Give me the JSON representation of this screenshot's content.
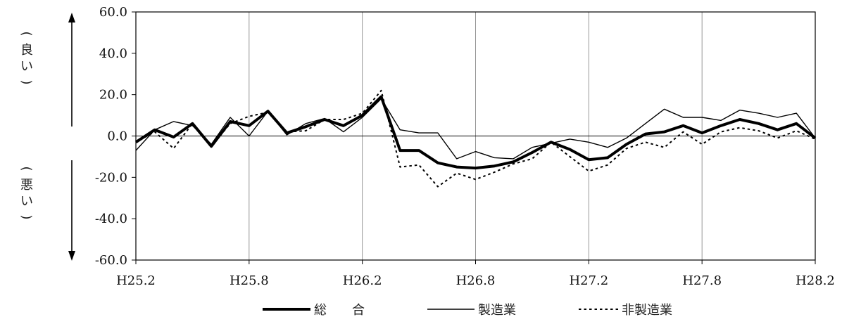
{
  "chart_data": {
    "type": "line",
    "title": "",
    "xlabel": "",
    "ylabel": "",
    "side_labels": {
      "upper": "（良い）",
      "lower": "（悪い）"
    },
    "ylim": [
      -60,
      60
    ],
    "yticks": [
      "60.0",
      "40.0",
      "20.0",
      "0.0",
      "-20.0",
      "-40.0",
      "-60.0"
    ],
    "ytick_values": [
      60,
      40,
      20,
      0,
      -20,
      -40,
      -60
    ],
    "x": [
      "H25.2",
      "H25.3",
      "H25.4",
      "H25.5",
      "H25.6",
      "H25.7",
      "H25.8",
      "H25.9",
      "H25.10",
      "H25.11",
      "H25.12",
      "H26.1",
      "H26.2",
      "H26.3",
      "H26.4",
      "H26.5",
      "H26.6",
      "H26.7",
      "H26.8",
      "H26.9",
      "H26.10",
      "H26.11",
      "H26.12",
      "H27.1",
      "H27.2",
      "H27.3",
      "H27.4",
      "H27.5",
      "H27.6",
      "H27.7",
      "H27.8",
      "H27.9",
      "H27.10",
      "H27.11",
      "H27.12",
      "H28.1",
      "H28.2"
    ],
    "xticks": [
      "H25.2",
      "H25.8",
      "H26.2",
      "H26.8",
      "H27.2",
      "H27.8",
      "H28.2"
    ],
    "grid": "vertical",
    "legend_position": "bottom",
    "series": [
      {
        "name": "総　　合",
        "style": "thick",
        "values": [
          -3,
          3,
          -0.5,
          6,
          -5,
          7,
          5,
          12,
          1.5,
          4.5,
          8,
          5,
          10,
          19,
          -7,
          -7,
          -13,
          -15,
          -15.5,
          -14.5,
          -12.5,
          -8,
          -3,
          -6.5,
          -11.5,
          -10.5,
          -4,
          1,
          2,
          5,
          1.5,
          5,
          8,
          6,
          3,
          6,
          -1
        ]
      },
      {
        "name": "製造業",
        "style": "thin",
        "values": [
          -7,
          3,
          7,
          5,
          -4,
          9,
          0,
          12,
          0.5,
          6,
          8.5,
          2,
          9,
          18,
          3,
          1.5,
          1.5,
          -11,
          -7.5,
          -10.5,
          -11,
          -5.5,
          -3.5,
          -1.5,
          -3,
          -5.5,
          -1,
          6,
          13,
          9,
          9,
          7.5,
          12.5,
          11,
          9,
          11,
          -1
        ]
      },
      {
        "name": "非製造業",
        "style": "dotted",
        "values": [
          -3,
          2,
          -6,
          6,
          -5,
          6,
          9.5,
          11.5,
          2,
          2.5,
          8,
          8,
          11,
          22,
          -15,
          -14,
          -24.5,
          -18,
          -21,
          -17.5,
          -13.5,
          -11,
          -3,
          -10,
          -17,
          -14,
          -6,
          -3,
          -5.5,
          2,
          -4,
          2,
          4,
          2.5,
          -1,
          2.5,
          -1.5
        ]
      }
    ]
  }
}
